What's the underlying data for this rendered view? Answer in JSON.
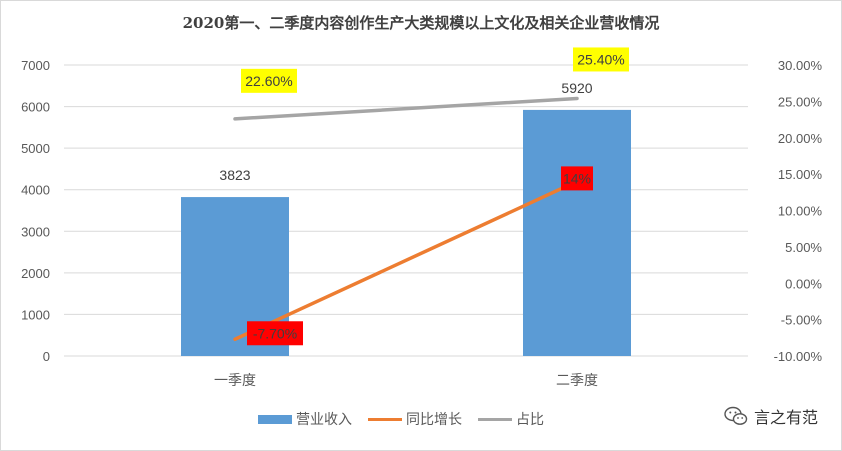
{
  "chart_data": {
    "type": "bar",
    "title": "2020第一、二季度内容创作生产大类规模以上文化及相关企业营收情况",
    "categories": [
      "一季度",
      "二季度"
    ],
    "series": [
      {
        "name": "营业收入",
        "type": "bar",
        "axis": "left",
        "values": [
          3823,
          5920
        ],
        "labels": [
          "3823",
          "5920"
        ],
        "color": "#5b9bd5"
      },
      {
        "name": "同比增长",
        "type": "line",
        "axis": "right",
        "values": [
          -7.7,
          14
        ],
        "labels": [
          "-7.70%",
          "14%"
        ],
        "color": "#ed7d31",
        "label_bg": "#ff0000"
      },
      {
        "name": "占比",
        "type": "line",
        "axis": "right",
        "values": [
          22.6,
          25.4
        ],
        "labels": [
          "22.60%",
          "25.40%"
        ],
        "color": "#a5a5a5",
        "label_bg": "#ffff00"
      }
    ],
    "y_left": {
      "min": 0,
      "max": 7000,
      "ticks": [
        "0",
        "1000",
        "2000",
        "3000",
        "4000",
        "5000",
        "6000",
        "7000"
      ]
    },
    "y_right": {
      "min": -10,
      "max": 30,
      "ticks": [
        "-10.00%",
        "-5.00%",
        "0.00%",
        "5.00%",
        "10.00%",
        "15.00%",
        "20.00%",
        "25.00%",
        "30.00%"
      ]
    },
    "grid": true,
    "legend_position": "bottom"
  },
  "watermark": "言之有范"
}
